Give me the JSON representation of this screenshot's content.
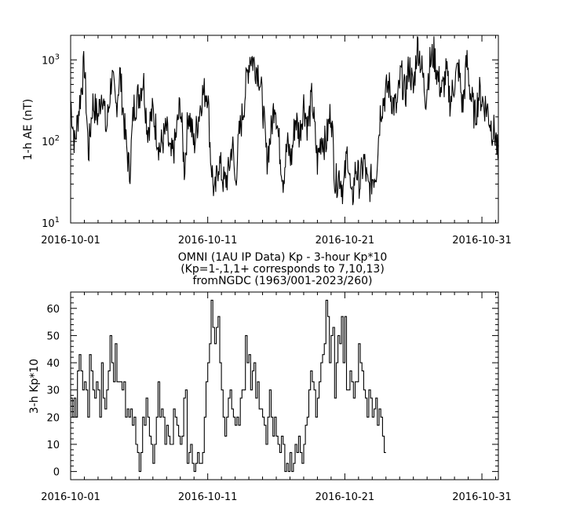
{
  "chart_data": [
    {
      "type": "line",
      "title": [],
      "ylabel": "1-h AE (nT)",
      "yscale": "log",
      "ylim": [
        10,
        2000
      ],
      "y_ticks": [
        {
          "value": 10,
          "base": "10",
          "exp": "1"
        },
        {
          "value": 100,
          "base": "10",
          "exp": "2"
        },
        {
          "value": 1000,
          "base": "10",
          "exp": "3"
        }
      ],
      "x_ticks": [
        "2016-10-01",
        "2016-10-11",
        "2016-10-21",
        "2016-10-31"
      ],
      "xlim_days": [
        0,
        31.2
      ],
      "x_unit": "days from 2016-10-01",
      "keyframes": [
        [
          0.0,
          320
        ],
        [
          0.3,
          90
        ],
        [
          0.6,
          250
        ],
        [
          1.0,
          900
        ],
        [
          1.3,
          70
        ],
        [
          1.6,
          300
        ],
        [
          2.0,
          200
        ],
        [
          2.3,
          450
        ],
        [
          2.6,
          130
        ],
        [
          3.0,
          650
        ],
        [
          3.3,
          250
        ],
        [
          3.6,
          700
        ],
        [
          4.0,
          110
        ],
        [
          4.3,
          40
        ],
        [
          4.6,
          260
        ],
        [
          5.0,
          380
        ],
        [
          5.3,
          600
        ],
        [
          5.6,
          140
        ],
        [
          6.0,
          230
        ],
        [
          6.5,
          80
        ],
        [
          7.0,
          140
        ],
        [
          7.3,
          60
        ],
        [
          7.6,
          90
        ],
        [
          8.0,
          300
        ],
        [
          8.3,
          45
        ],
        [
          8.6,
          250
        ],
        [
          9.0,
          90
        ],
        [
          9.3,
          190
        ],
        [
          9.6,
          380
        ],
        [
          10.0,
          420
        ],
        [
          10.2,
          70
        ],
        [
          10.5,
          20
        ],
        [
          10.8,
          60
        ],
        [
          11.2,
          30
        ],
        [
          11.5,
          40
        ],
        [
          11.8,
          100
        ],
        [
          12.0,
          30
        ],
        [
          12.3,
          120
        ],
        [
          12.6,
          250
        ],
        [
          12.9,
          700
        ],
        [
          13.1,
          1150
        ],
        [
          13.4,
          900
        ],
        [
          13.7,
          750
        ],
        [
          14.0,
          300
        ],
        [
          14.3,
          60
        ],
        [
          14.6,
          120
        ],
        [
          14.9,
          350
        ],
        [
          15.2,
          95
        ],
        [
          15.5,
          35
        ],
        [
          15.8,
          90
        ],
        [
          16.1,
          60
        ],
        [
          16.4,
          200
        ],
        [
          16.7,
          120
        ],
        [
          17.0,
          300
        ],
        [
          17.3,
          150
        ],
        [
          17.6,
          350
        ],
        [
          18.0,
          55
        ],
        [
          18.3,
          120
        ],
        [
          18.6,
          90
        ],
        [
          19.0,
          250
        ],
        [
          19.3,
          30
        ],
        [
          19.6,
          40
        ],
        [
          19.9,
          25
        ],
        [
          20.2,
          80
        ],
        [
          20.5,
          16
        ],
        [
          20.8,
          50
        ],
        [
          21.1,
          30
        ],
        [
          21.4,
          60
        ],
        [
          21.7,
          25
        ],
        [
          22.0,
          35
        ],
        [
          22.3,
          45
        ],
        [
          22.6,
          250
        ],
        [
          22.9,
          350
        ],
        [
          23.2,
          500
        ],
        [
          23.5,
          300
        ],
        [
          23.8,
          250
        ],
        [
          24.1,
          700
        ],
        [
          24.4,
          350
        ],
        [
          24.7,
          900
        ],
        [
          25.0,
          400
        ],
        [
          25.3,
          1700
        ],
        [
          25.6,
          800
        ],
        [
          25.9,
          350
        ],
        [
          26.2,
          900
        ],
        [
          26.5,
          1200
        ],
        [
          26.8,
          600
        ],
        [
          27.1,
          400
        ],
        [
          27.4,
          700
        ],
        [
          27.7,
          300
        ],
        [
          28.0,
          550
        ],
        [
          28.3,
          800
        ],
        [
          28.6,
          250
        ],
        [
          28.9,
          1000
        ],
        [
          29.2,
          350
        ],
        [
          29.5,
          200
        ],
        [
          29.8,
          400
        ],
        [
          30.1,
          300
        ],
        [
          30.4,
          250
        ],
        [
          30.7,
          150
        ],
        [
          31.0,
          120
        ],
        [
          31.2,
          55
        ]
      ]
    },
    {
      "type": "line",
      "title": [
        "OMNI (1AU IP Data)  Kp - 3-hour Kp*10",
        "(Kp=1-,1,1+ corresponds to 7,10,13)",
        "fromNGDC (1963/001-2023/260)"
      ],
      "ylabel": "3-h Kp*10",
      "ylim": [
        -3,
        66
      ],
      "y_ticks": [
        0,
        10,
        20,
        30,
        40,
        50,
        60
      ],
      "x_ticks": [
        "2016-10-01",
        "2016-10-11",
        "2016-10-21",
        "2016-10-31"
      ],
      "xlim_days": [
        0,
        31.2
      ],
      "x_unit": "days from 2016-10-01",
      "step_hours": 3,
      "values": [
        27,
        20,
        27,
        20,
        37,
        43,
        37,
        30,
        33,
        30,
        20,
        43,
        37,
        30,
        27,
        33,
        30,
        20,
        40,
        27,
        23,
        30,
        37,
        50,
        40,
        33,
        47,
        33,
        33,
        33,
        30,
        33,
        20,
        23,
        20,
        23,
        17,
        20,
        10,
        7,
        0,
        7,
        20,
        17,
        27,
        20,
        13,
        10,
        3,
        10,
        20,
        33,
        20,
        23,
        20,
        10,
        17,
        13,
        10,
        10,
        23,
        20,
        17,
        13,
        10,
        13,
        27,
        30,
        3,
        7,
        10,
        3,
        0,
        3,
        7,
        3,
        3,
        7,
        20,
        33,
        40,
        47,
        63,
        53,
        47,
        53,
        57,
        40,
        30,
        20,
        13,
        20,
        27,
        30,
        23,
        20,
        17,
        20,
        17,
        27,
        30,
        30,
        50,
        40,
        43,
        30,
        37,
        40,
        27,
        33,
        23,
        23,
        20,
        17,
        10,
        20,
        30,
        20,
        13,
        20,
        13,
        10,
        7,
        13,
        10,
        0,
        3,
        0,
        7,
        0,
        3,
        10,
        7,
        13,
        7,
        3,
        10,
        17,
        20,
        30,
        37,
        33,
        30,
        20,
        27,
        33,
        40,
        43,
        47,
        63,
        57,
        40,
        50,
        53,
        27,
        40,
        50,
        47,
        57,
        40,
        57,
        30,
        30,
        37,
        33,
        27,
        33,
        33,
        47,
        40,
        37,
        30,
        27,
        20,
        30,
        27,
        20,
        23,
        27,
        17,
        23,
        20,
        13,
        7
      ]
    }
  ]
}
